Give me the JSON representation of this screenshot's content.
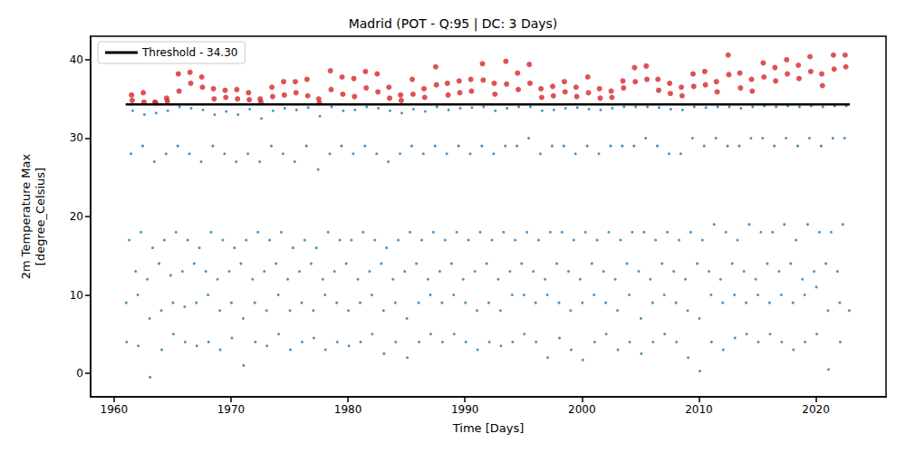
{
  "chart_data": {
    "type": "scatter",
    "title": "Madrid (POT - Q:95 | DC: 3 Days)",
    "x_label": "Time [Days]",
    "y_label": "2m Temperature Max\n[degree_Celsius]",
    "xlim": [
      1958,
      2026
    ],
    "xticks": [
      1960,
      1970,
      1980,
      1990,
      2000,
      2010,
      2020
    ],
    "ylim": [
      -3,
      43
    ],
    "yticks": [
      0,
      10,
      20,
      30,
      40
    ],
    "grid": false,
    "legend": "upper left",
    "threshold": {
      "value": 34.3,
      "label": "Threshold - 34.30",
      "color": "#000000",
      "x": [
        1961,
        2022.9
      ]
    },
    "series": [
      {
        "color": "#1f77b4",
        "marker": "circle",
        "x": [
          1961.04,
          1961.08,
          1961.3,
          1961.45,
          1961.6,
          1961.85,
          1962.04,
          1962.08,
          1962.3,
          1962.45,
          1962.6,
          1962.85,
          1963.04,
          1963.08,
          1963.3,
          1963.45,
          1963.6,
          1963.85,
          1964.04,
          1964.08,
          1964.3,
          1964.45,
          1964.6,
          1964.85,
          1965.04,
          1965.08,
          1965.3,
          1965.45,
          1965.6,
          1965.85,
          1966.04,
          1966.08,
          1966.3,
          1966.45,
          1966.6,
          1966.85,
          1967.04,
          1967.08,
          1967.3,
          1967.45,
          1967.6,
          1967.85,
          1968.04,
          1968.08,
          1968.3,
          1968.45,
          1968.6,
          1968.85,
          1969.04,
          1969.08,
          1969.3,
          1969.45,
          1969.6,
          1969.85,
          1970.04,
          1970.08,
          1970.3,
          1970.45,
          1970.6,
          1970.85,
          1971.04,
          1971.08,
          1971.3,
          1971.45,
          1971.6,
          1971.85,
          1972.04,
          1972.08,
          1972.3,
          1972.45,
          1972.6,
          1972.85,
          1973.04,
          1973.08,
          1973.3,
          1973.45,
          1973.6,
          1973.85,
          1974.04,
          1974.08,
          1974.3,
          1974.45,
          1974.6,
          1974.85,
          1975.04,
          1975.08,
          1975.3,
          1975.45,
          1975.6,
          1975.85,
          1976.04,
          1976.08,
          1976.3,
          1976.45,
          1976.6,
          1976.85,
          1977.04,
          1977.08,
          1977.3,
          1977.45,
          1977.6,
          1977.85,
          1978.04,
          1978.08,
          1978.3,
          1978.45,
          1978.6,
          1978.85,
          1979.04,
          1979.08,
          1979.3,
          1979.45,
          1979.6,
          1979.85,
          1980.04,
          1980.08,
          1980.3,
          1980.45,
          1980.6,
          1980.85,
          1981.04,
          1981.08,
          1981.3,
          1981.45,
          1981.6,
          1981.85,
          1982.04,
          1982.08,
          1982.3,
          1982.45,
          1982.6,
          1982.85,
          1983.04,
          1983.08,
          1983.3,
          1983.45,
          1983.6,
          1983.85,
          1984.04,
          1984.08,
          1984.3,
          1984.45,
          1984.6,
          1984.85,
          1985.04,
          1985.08,
          1985.3,
          1985.45,
          1985.6,
          1985.85,
          1986.04,
          1986.08,
          1986.3,
          1986.45,
          1986.6,
          1986.85,
          1987.04,
          1987.08,
          1987.3,
          1987.45,
          1987.6,
          1987.85,
          1988.04,
          1988.08,
          1988.3,
          1988.45,
          1988.6,
          1988.85,
          1989.04,
          1989.08,
          1989.3,
          1989.45,
          1989.6,
          1989.85,
          1990.04,
          1990.08,
          1990.3,
          1990.45,
          1990.6,
          1990.85,
          1991.04,
          1991.08,
          1991.3,
          1991.45,
          1991.6,
          1991.85,
          1992.04,
          1992.08,
          1992.3,
          1992.45,
          1992.6,
          1992.85,
          1993.04,
          1993.08,
          1993.3,
          1993.45,
          1993.6,
          1993.85,
          1994.04,
          1994.08,
          1994.3,
          1994.45,
          1994.6,
          1994.85,
          1995.04,
          1995.08,
          1995.3,
          1995.45,
          1995.6,
          1995.85,
          1996.04,
          1996.08,
          1996.3,
          1996.45,
          1996.6,
          1996.85,
          1997.04,
          1997.08,
          1997.3,
          1997.45,
          1997.6,
          1997.85,
          1998.04,
          1998.08,
          1998.3,
          1998.45,
          1998.6,
          1998.85,
          1999.04,
          1999.08,
          1999.3,
          1999.45,
          1999.6,
          1999.85,
          2000.04,
          2000.08,
          2000.3,
          2000.45,
          2000.6,
          2000.85,
          2001.04,
          2001.08,
          2001.3,
          2001.45,
          2001.6,
          2001.85,
          2002.04,
          2002.08,
          2002.3,
          2002.45,
          2002.6,
          2002.85,
          2003.04,
          2003.08,
          2003.3,
          2003.45,
          2003.6,
          2003.85,
          2004.04,
          2004.08,
          2004.3,
          2004.45,
          2004.6,
          2004.85,
          2005.04,
          2005.08,
          2005.3,
          2005.45,
          2005.6,
          2005.85,
          2006.04,
          2006.08,
          2006.3,
          2006.45,
          2006.6,
          2006.85,
          2007.04,
          2007.08,
          2007.3,
          2007.45,
          2007.6,
          2007.85,
          2008.04,
          2008.08,
          2008.3,
          2008.45,
          2008.6,
          2008.85,
          2009.04,
          2009.08,
          2009.3,
          2009.45,
          2009.6,
          2009.85,
          2010.04,
          2010.08,
          2010.3,
          2010.45,
          2010.6,
          2010.85,
          2011.04,
          2011.08,
          2011.3,
          2011.45,
          2011.6,
          2011.85,
          2012.04,
          2012.08,
          2012.3,
          2012.45,
          2012.6,
          2012.85,
          2013.04,
          2013.08,
          2013.3,
          2013.45,
          2013.6,
          2013.85,
          2014.04,
          2014.08,
          2014.3,
          2014.45,
          2014.6,
          2014.85,
          2015.04,
          2015.08,
          2015.3,
          2015.45,
          2015.6,
          2015.85,
          2016.04,
          2016.08,
          2016.3,
          2016.45,
          2016.6,
          2016.85,
          2017.04,
          2017.08,
          2017.3,
          2017.45,
          2017.6,
          2017.85,
          2018.04,
          2018.08,
          2018.3,
          2018.45,
          2018.6,
          2018.85,
          2019.04,
          2019.08,
          2019.3,
          2019.45,
          2019.6,
          2019.85,
          2020.04,
          2020.08,
          2020.3,
          2020.45,
          2020.6,
          2020.85,
          2021.04,
          2021.08,
          2021.3,
          2021.45,
          2021.6,
          2021.85,
          2022.04,
          2022.08,
          2022.3,
          2022.45,
          2022.6,
          2022.85
        ],
        "values": [
          9,
          4,
          17,
          28,
          33.5,
          13,
          10,
          3.5,
          18,
          29,
          33,
          12,
          7,
          -0.5,
          16,
          27,
          33.2,
          14,
          8,
          3,
          17,
          28,
          33.5,
          12.5,
          9,
          5,
          18,
          29,
          34,
          13,
          8.5,
          4,
          17,
          28,
          33.8,
          14,
          9,
          3.5,
          16,
          27,
          33.6,
          13,
          10,
          4,
          18,
          29,
          33,
          12,
          8,
          3,
          17,
          28,
          33.4,
          13,
          9,
          4.5,
          16,
          27,
          33,
          14,
          7,
          1,
          17,
          28,
          33.7,
          12,
          9,
          4,
          18,
          27,
          32.5,
          13,
          8,
          3.5,
          17,
          29,
          33.5,
          14,
          10,
          5,
          18,
          28,
          33.8,
          12,
          8,
          3,
          16,
          27,
          33.6,
          13,
          9,
          4,
          17,
          29,
          33.9,
          14,
          8,
          4.5,
          16,
          26,
          32.8,
          12,
          10,
          3,
          18,
          28,
          34,
          13,
          9,
          4,
          17,
          29,
          33.5,
          14,
          8,
          3.5,
          17,
          28,
          33.6,
          12,
          9,
          4,
          18,
          29,
          34,
          13,
          10,
          5,
          17,
          28,
          33.8,
          14,
          8,
          2.5,
          16,
          27,
          33.5,
          12,
          9,
          4,
          17,
          28,
          33.2,
          13,
          7,
          2,
          18,
          29,
          33.7,
          14,
          9,
          4,
          17,
          28,
          33.4,
          12,
          10,
          5,
          18,
          29,
          34,
          13,
          9,
          4,
          17,
          28,
          33.6,
          14,
          10,
          5,
          18,
          29,
          33.8,
          12,
          9,
          4,
          17,
          28,
          33.9,
          13,
          8,
          3,
          18,
          29,
          34,
          14,
          9,
          4,
          17,
          28,
          33.5,
          12,
          8,
          3.5,
          18,
          29,
          33.8,
          13,
          10,
          4,
          17,
          29,
          34,
          14,
          10,
          5,
          18,
          30,
          34,
          13,
          9,
          4,
          17,
          28,
          33.5,
          12,
          10,
          2,
          18,
          29,
          33.6,
          14,
          9,
          4.5,
          18,
          29,
          33.8,
          13,
          8,
          3,
          17,
          28,
          33.9,
          12,
          9,
          1.7,
          18,
          29,
          33.7,
          14,
          10,
          4,
          17,
          28,
          33.6,
          13,
          9,
          5,
          18,
          29,
          33.8,
          12,
          8,
          3,
          17,
          29,
          34,
          14,
          10,
          4,
          18,
          29,
          34,
          13,
          7,
          2.5,
          18,
          30,
          34,
          12,
          9,
          4,
          17,
          29,
          33.9,
          14,
          10,
          5,
          18,
          28,
          33.7,
          13,
          9,
          4,
          17,
          28,
          33.6,
          12,
          8,
          2,
          18,
          30,
          34,
          14,
          7,
          0.3,
          17,
          29,
          33.9,
          13,
          10,
          4,
          19,
          30,
          34,
          12,
          9,
          3,
          18,
          29,
          34,
          14,
          10,
          4.5,
          17,
          29,
          33.8,
          13,
          9,
          5,
          19,
          30,
          34,
          12,
          10,
          4,
          18,
          30,
          34.1,
          14,
          9,
          5,
          18,
          29,
          34,
          13,
          10,
          4,
          19,
          30,
          34.1,
          14,
          9,
          3,
          17,
          29,
          34,
          12,
          10,
          4,
          19,
          30,
          34.1,
          13,
          11,
          5,
          18,
          29,
          34,
          14,
          8,
          0.5,
          18,
          30,
          34.1,
          13,
          9,
          4,
          19,
          30,
          34.1,
          8
        ]
      },
      {
        "color": "#d62728",
        "marker": "circle",
        "x": [
          1961.5,
          1961.56,
          1962.5,
          1962.56,
          1963.5,
          1963.56,
          1964.5,
          1964.56,
          1965.5,
          1965.56,
          1966.5,
          1966.56,
          1967.5,
          1967.56,
          1968.5,
          1968.56,
          1969.5,
          1969.56,
          1970.5,
          1970.56,
          1971.5,
          1971.56,
          1972.5,
          1972.56,
          1973.5,
          1973.56,
          1974.5,
          1974.56,
          1975.5,
          1975.56,
          1976.5,
          1976.56,
          1977.5,
          1977.56,
          1978.5,
          1978.56,
          1979.5,
          1979.56,
          1980.5,
          1980.56,
          1981.5,
          1981.56,
          1982.5,
          1982.56,
          1983.5,
          1983.56,
          1984.5,
          1984.56,
          1985.5,
          1985.56,
          1986.5,
          1986.56,
          1987.5,
          1987.56,
          1988.5,
          1988.56,
          1989.5,
          1989.56,
          1990.5,
          1990.56,
          1991.5,
          1991.56,
          1992.5,
          1992.56,
          1993.5,
          1993.56,
          1994.5,
          1994.56,
          1995.5,
          1995.56,
          1996.5,
          1996.56,
          1997.5,
          1997.56,
          1998.5,
          1998.56,
          1999.5,
          1999.56,
          2000.5,
          2000.56,
          2001.5,
          2001.56,
          2002.5,
          2002.56,
          2003.5,
          2003.56,
          2004.5,
          2004.56,
          2005.5,
          2005.56,
          2006.5,
          2006.56,
          2007.5,
          2007.56,
          2008.5,
          2008.56,
          2009.5,
          2009.56,
          2010.5,
          2010.56,
          2011.5,
          2011.56,
          2012.5,
          2012.56,
          2013.5,
          2013.56,
          2014.5,
          2014.56,
          2015.5,
          2015.56,
          2016.5,
          2016.56,
          2017.5,
          2017.56,
          2018.5,
          2018.56,
          2019.5,
          2019.56,
          2020.5,
          2020.56,
          2021.5,
          2021.56,
          2022.5,
          2022.56
        ],
        "values": [
          35.5,
          34.8,
          35.8,
          34.6,
          34.6,
          34.5,
          35.1,
          34.7,
          38.2,
          36,
          38.4,
          37,
          37.8,
          36.5,
          36.3,
          35,
          36.1,
          35.2,
          36.2,
          35,
          35.8,
          34.9,
          35,
          34.6,
          36.5,
          35.3,
          37.2,
          35.5,
          37.2,
          35.8,
          37.5,
          35.4,
          35,
          34.5,
          38.6,
          36.2,
          37.8,
          35.6,
          37.6,
          35.3,
          38.5,
          36.4,
          38.2,
          35.9,
          36.5,
          35.1,
          35.5,
          34.8,
          37.5,
          35.6,
          36.3,
          35.2,
          39.1,
          36.8,
          37,
          35.5,
          37.3,
          35.8,
          37.5,
          36,
          39.5,
          37.4,
          37,
          35.6,
          39.8,
          36.9,
          38.3,
          36.2,
          39.4,
          37,
          36.3,
          35.2,
          36.6,
          35.4,
          37.2,
          35.9,
          36.5,
          35.3,
          37.8,
          35.8,
          36.3,
          35.1,
          36,
          35.2,
          37.3,
          36.4,
          39,
          37.2,
          39.2,
          37.5,
          37.5,
          36.1,
          37,
          35.7,
          36.5,
          35.4,
          38.2,
          36.6,
          38.5,
          36.8,
          37.2,
          35.9,
          40.6,
          38.1,
          38.3,
          36.4,
          37.5,
          36,
          39.6,
          37.8,
          39,
          37.3,
          40,
          38.2,
          39.3,
          37.6,
          40.4,
          38.5,
          38.2,
          36.7,
          40.6,
          38.8,
          40.6,
          39.1
        ]
      }
    ]
  }
}
